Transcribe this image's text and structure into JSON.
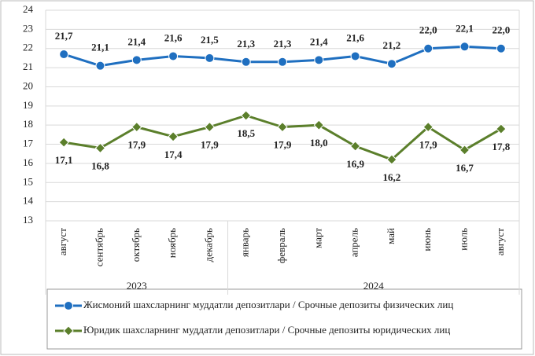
{
  "chart_data": {
    "type": "line",
    "categories": [
      "август",
      "сентябрь",
      "октябрь",
      "ноябрь",
      "декабрь",
      "январь",
      "февраль",
      "март",
      "апрель",
      "май",
      "июнь",
      "июль",
      "август"
    ],
    "groups": [
      {
        "label": "2023",
        "count": 5
      },
      {
        "label": "2024",
        "count": 8
      }
    ],
    "series": [
      {
        "name": "Жисмоний шахсларнинг  муддатли  депозитлари  / Срочные депозиты  физических  лиц",
        "color": "#1f6fc0",
        "marker": "circle",
        "label_position": "above",
        "values": [
          21.7,
          21.1,
          21.4,
          21.6,
          21.5,
          21.3,
          21.3,
          21.4,
          21.6,
          21.2,
          22.0,
          22.1,
          22.0
        ],
        "value_labels": [
          "21,7",
          "21,1",
          "21,4",
          "21,6",
          "21,5",
          "21,3",
          "21,3",
          "21,4",
          "21,6",
          "21,2",
          "22,0",
          "22,1",
          "22,0"
        ]
      },
      {
        "name": "Юридик  шахсларнинг  муддатли  депозитлари  / Срочные депозиты  юридических  лиц",
        "color": "#5b7f2b",
        "marker": "diamond",
        "label_position": "below",
        "values": [
          17.1,
          16.8,
          17.9,
          17.4,
          17.9,
          18.5,
          17.9,
          18.0,
          16.9,
          16.2,
          17.9,
          16.7,
          17.8
        ],
        "value_labels": [
          "17,1",
          "16,8",
          "17,9",
          "17,4",
          "17,9",
          "18,5",
          "17,9",
          "18,0",
          "16,9",
          "16,2",
          "17,9",
          "16,7",
          "17,8"
        ]
      }
    ],
    "ylim": [
      13,
      24
    ],
    "yticks": [
      13,
      14,
      15,
      16,
      17,
      18,
      19,
      20,
      21,
      22,
      23,
      24
    ],
    "grid": true
  }
}
